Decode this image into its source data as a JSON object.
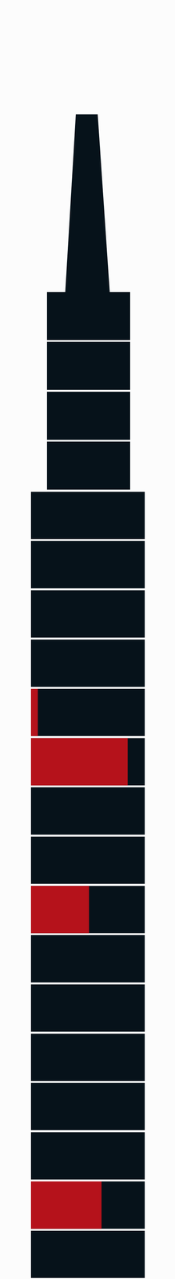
{
  "chart_data": {
    "type": "bar",
    "orientation": "horizontal",
    "categories": [
      null,
      null,
      null,
      null,
      null,
      null,
      null,
      null,
      null,
      null,
      null,
      null,
      null,
      null,
      null,
      null
    ],
    "values": [
      0,
      0,
      0,
      0,
      6,
      85,
      0,
      0,
      51,
      0,
      0,
      0,
      0,
      0,
      62,
      0
    ],
    "color": "#b5121b",
    "xlim": [
      0,
      100
    ],
    "grid": false,
    "tick_labels": false
  }
}
